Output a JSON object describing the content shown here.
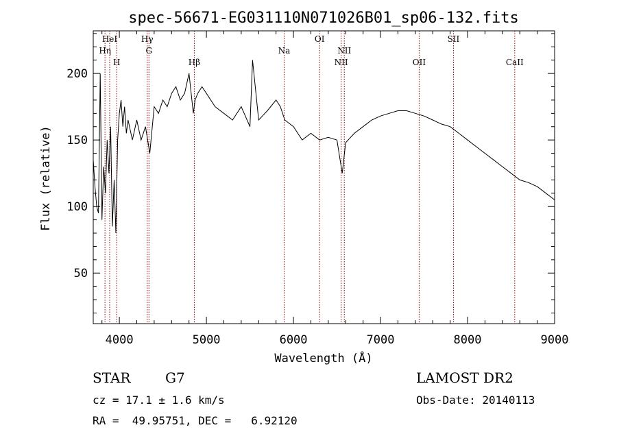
{
  "chart_data": {
    "type": "line",
    "title": "spec-56671-EG031110N071026B01_sp06-132.fits",
    "xlabel": "Wavelength (Å)",
    "ylabel": "Flux (relative)",
    "xlim": [
      3700,
      9000
    ],
    "ylim": [
      12,
      232
    ],
    "x_ticks": [
      4000,
      5000,
      6000,
      7000,
      8000,
      9000
    ],
    "y_ticks": [
      50,
      100,
      150,
      200
    ],
    "grid": false,
    "line_color": "#000000",
    "marker_color": "#8b0000",
    "series": [
      {
        "x": [
          3700,
          3720,
          3740,
          3760,
          3780,
          3800,
          3820,
          3840,
          3860,
          3880,
          3900,
          3920,
          3940,
          3960,
          3980,
          4000,
          4020,
          4040,
          4060,
          4080,
          4100,
          4150,
          4200,
          4250,
          4300,
          4350,
          4400,
          4450,
          4500,
          4550,
          4600,
          4650,
          4700,
          4750,
          4800,
          4850,
          4870,
          4900,
          4950,
          5000,
          5100,
          5200,
          5300,
          5400,
          5500,
          5530,
          5600,
          5700,
          5800,
          5850,
          5900,
          6000,
          6100,
          6200,
          6300,
          6400,
          6500,
          6560,
          6600,
          6700,
          6800,
          6900,
          7000,
          7100,
          7200,
          7300,
          7400,
          7500,
          7600,
          7700,
          7800,
          7900,
          8000,
          8100,
          8200,
          8300,
          8400,
          8500,
          8600,
          8700,
          8800,
          8900,
          9000
        ],
        "y": [
          135,
          115,
          100,
          95,
          200,
          90,
          130,
          110,
          150,
          125,
          160,
          85,
          120,
          80,
          150,
          170,
          180,
          160,
          175,
          155,
          165,
          150,
          165,
          150,
          160,
          140,
          175,
          170,
          180,
          175,
          185,
          190,
          180,
          185,
          200,
          170,
          180,
          185,
          190,
          185,
          175,
          170,
          165,
          175,
          160,
          210,
          165,
          172,
          180,
          175,
          165,
          160,
          150,
          155,
          150,
          152,
          150,
          125,
          148,
          155,
          160,
          165,
          168,
          170,
          172,
          172,
          170,
          168,
          165,
          162,
          160,
          155,
          150,
          145,
          140,
          135,
          130,
          125,
          120,
          118,
          115,
          110,
          105
        ]
      }
    ],
    "line_markers": [
      {
        "x": 3835,
        "label": "Hη",
        "row": 2
      },
      {
        "x": 3889,
        "label": "HeI",
        "row": 1
      },
      {
        "x": 3970,
        "label": "H",
        "row": 3
      },
      {
        "x": 4320,
        "label": "Hγ",
        "row": 1
      },
      {
        "x": 4340,
        "label": "G",
        "row": 2
      },
      {
        "x": 4861,
        "label": "Hβ",
        "row": 3
      },
      {
        "x": 5893,
        "label": "Na",
        "row": 2
      },
      {
        "x": 6300,
        "label": "OI",
        "row": 1
      },
      {
        "x": 6548,
        "label": "NII",
        "row": 3
      },
      {
        "x": 6584,
        "label": "NII",
        "row": 2
      },
      {
        "x": 7444,
        "label": "OII",
        "row": 3
      },
      {
        "x": 7838,
        "label": "SII",
        "row": 1
      },
      {
        "x": 8542,
        "label": "CaII",
        "row": 3
      }
    ]
  },
  "info": {
    "object_class": "STAR",
    "subclass": "G7",
    "survey": "LAMOST DR2",
    "redshift": "cz = 17.1 ± 1.6 km/s",
    "obs_date": "Obs-Date: 20140113",
    "coords": "RA =  49.95751, DEC =   6.92120"
  }
}
